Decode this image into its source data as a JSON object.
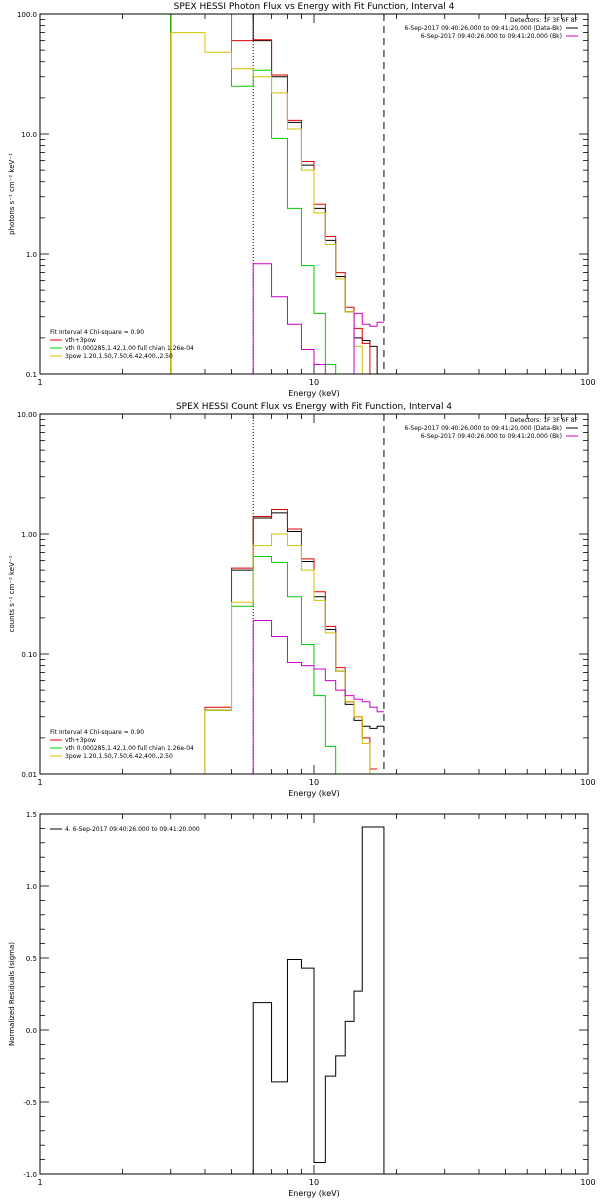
{
  "chart_data": [
    {
      "type": "line",
      "title": "SPEX HESSI Photon Flux vs Energy with Fit Function, Interval 4",
      "xlabel": "Energy (keV)",
      "ylabel": "photons s⁻¹ cm⁻² keV⁻¹",
      "xscale": "log",
      "yscale": "log",
      "xlim": [
        1,
        100
      ],
      "ylim": [
        0.1,
        100
      ],
      "x_tick_labels": [
        {
          "v": 1,
          "t": "1"
        },
        {
          "v": 10,
          "t": "10"
        },
        {
          "v": 100,
          "t": "100"
        }
      ],
      "y_tick_labels": [
        {
          "v": 0.1,
          "t": "0.1"
        },
        {
          "v": 1,
          "t": "1.0"
        },
        {
          "v": 10,
          "t": "10.0"
        },
        {
          "v": 100,
          "t": "100.0"
        }
      ],
      "legend_placement": "bottom-left",
      "legend_title": "Fit Interval 4   Chi-square = 0.90",
      "legend": [
        {
          "label": "vth+3pow",
          "color": "#e00000"
        },
        {
          "label": "vth 0.000285,1.42,1.00   full chian 1.26e-04",
          "color": "#00cc00"
        },
        {
          "label": "3pow 1.20,1.50,7.50,6.42,400.,2.50",
          "color": "#d4c000"
        }
      ],
      "info_lines": [
        "Detectors: 1F 3F 6F 8F",
        "6-Sep-2017 09:40:26.000 to 09:41:20.000 (Data-Bk)",
        "6-Sep-2017 09:40:26.000 to 09:41:20.000 (Bk)"
      ],
      "info_colors": [
        "",
        "#000000",
        "#cc00cc"
      ],
      "vlines": [
        {
          "x": 6.0,
          "style": "dotted"
        },
        {
          "x": 18.0,
          "style": "dashed"
        }
      ],
      "edges": [
        3.0,
        4.0,
        5.0,
        6.0,
        7.0,
        8.0,
        9.0,
        10.0,
        11.0,
        12.0,
        13.0,
        14.0,
        15.0,
        16.0,
        17.0,
        18.0
      ],
      "series": [
        {
          "name": "vth+3pow",
          "color": "#e00000",
          "values": [
            100,
            100,
            60,
            61,
            31,
            13,
            5.9,
            2.6,
            1.4,
            0.7,
            0.36,
            0.24,
            0.18,
            0.095
          ]
        },
        {
          "name": "Data-Bk",
          "color": "#000000",
          "values": [
            100,
            100,
            100,
            60,
            30,
            12.5,
            5.5,
            2.4,
            1.3,
            0.65,
            0.33,
            0.2,
            0.19,
            0.17,
            0.095
          ]
        },
        {
          "name": "vth",
          "color": "#00cc00",
          "values": [
            100,
            100,
            25,
            34,
            9.2,
            2.4,
            0.8,
            0.32,
            0.12,
            0.04
          ]
        },
        {
          "name": "3pow",
          "color": "#d4c000",
          "values": [
            70,
            48,
            35,
            30,
            22,
            11,
            5.0,
            2.2,
            1.2,
            0.62,
            0.33,
            0.17,
            0.1
          ]
        },
        {
          "name": "Bk",
          "color": "#cc00cc",
          "values": [
            null,
            null,
            null,
            0.83,
            0.44,
            0.26,
            0.16,
            0.12,
            0.1,
            0.1,
            0.08,
            0.32,
            0.26,
            0.25,
            0.27
          ]
        }
      ]
    },
    {
      "type": "line",
      "title": "SPEX HESSI Count Flux vs Energy with Fit Function, Interval 4",
      "xlabel": "Energy (keV)",
      "ylabel": "counts s⁻¹ cm⁻² keV⁻¹",
      "xscale": "log",
      "yscale": "log",
      "xlim": [
        1,
        100
      ],
      "ylim": [
        0.01,
        10
      ],
      "x_tick_labels": [
        {
          "v": 1,
          "t": "1"
        },
        {
          "v": 10,
          "t": "10"
        },
        {
          "v": 100,
          "t": "100"
        }
      ],
      "y_tick_labels": [
        {
          "v": 0.01,
          "t": "0.01"
        },
        {
          "v": 0.1,
          "t": "0.10"
        },
        {
          "v": 1,
          "t": "1.00"
        },
        {
          "v": 10,
          "t": "10.00"
        }
      ],
      "legend_placement": "bottom-left",
      "legend_title": "Fit Interval 4   Chi-square = 0.90",
      "legend": [
        {
          "label": "vth+3pow",
          "color": "#e00000"
        },
        {
          "label": "vth 0.000285,1.42,1.00   full chian 1.26e-04",
          "color": "#00cc00"
        },
        {
          "label": "3pow 1.20,1.50,7.50,6.42,400.,2.50",
          "color": "#d4c000"
        }
      ],
      "info_lines": [
        "Detectors: 1F 3F 6F 8F",
        "6-Sep-2017 09:40:26.000 to 09:41:20.000 (Data-Bk)",
        "6-Sep-2017 09:40:26.000 to 09:41:20.000 (Bk)"
      ],
      "info_colors": [
        "",
        "#000000",
        "#cc00cc"
      ],
      "vlines": [
        {
          "x": 6.0,
          "style": "dotted"
        },
        {
          "x": 18.0,
          "style": "dashed"
        }
      ],
      "edges": [
        4.0,
        5.0,
        6.0,
        7.0,
        8.0,
        9.0,
        10.0,
        11.0,
        12.0,
        13.0,
        14.0,
        15.0,
        16.0,
        17.0,
        18.0
      ],
      "series": [
        {
          "name": "vth+3pow",
          "color": "#e00000",
          "values": [
            0.036,
            0.52,
            1.4,
            1.6,
            1.1,
            0.62,
            0.33,
            0.17,
            0.077,
            0.04,
            0.03,
            0.02,
            0.011
          ]
        },
        {
          "name": "Data-Bk",
          "color": "#000000",
          "values": [
            0.034,
            0.5,
            1.36,
            1.5,
            1.05,
            0.59,
            0.3,
            0.16,
            0.072,
            0.038,
            0.028,
            0.025,
            0.024,
            0.025
          ]
        },
        {
          "name": "vth",
          "color": "#00cc00",
          "values": [
            0.034,
            0.25,
            0.65,
            0.58,
            0.3,
            0.12,
            0.045,
            0.017,
            0.008
          ]
        },
        {
          "name": "3pow",
          "color": "#d4c000",
          "values": [
            0.034,
            0.27,
            0.8,
            1.0,
            0.8,
            0.5,
            0.28,
            0.15,
            0.072,
            0.04,
            0.03,
            0.018,
            0.01
          ]
        },
        {
          "name": "Bk",
          "color": "#cc00cc",
          "values": [
            null,
            null,
            0.19,
            0.14,
            0.085,
            0.08,
            0.075,
            0.06,
            0.05,
            0.045,
            0.042,
            0.04,
            0.036,
            0.033
          ]
        }
      ]
    },
    {
      "type": "line",
      "title": "",
      "xlabel": "Energy (keV)",
      "ylabel": "Normalized Residuals (sigma)",
      "xscale": "log",
      "yscale": "linear",
      "xlim": [
        1,
        100
      ],
      "ylim": [
        -1.0,
        1.5
      ],
      "x_tick_labels": [
        {
          "v": 1,
          "t": "1"
        },
        {
          "v": 10,
          "t": "10"
        },
        {
          "v": 100,
          "t": "100"
        }
      ],
      "y_tick_labels": [
        {
          "v": -1.0,
          "t": "-1.0"
        },
        {
          "v": -0.5,
          "t": "-0.5"
        },
        {
          "v": 0.0,
          "t": "0.0"
        },
        {
          "v": 0.5,
          "t": "0.5"
        },
        {
          "v": 1.0,
          "t": "1.0"
        },
        {
          "v": 1.5,
          "t": "1.5"
        }
      ],
      "legend_placement": "top-left",
      "legend_title": "",
      "legend": [
        {
          "label": "4.  6-Sep-2017 09:40:26.000 to 09:41:20.000",
          "color": "#000000"
        }
      ],
      "info_lines": [],
      "info_colors": [],
      "vlines": [],
      "edges": [
        6.0,
        7.0,
        8.0,
        9.0,
        10.0,
        11.0,
        12.0,
        13.0,
        14.0,
        15.0,
        16.0,
        17.0,
        18.0
      ],
      "series": [
        {
          "name": "4.  6-Sep-2017 09:40:26.000 to 09:41:20.000",
          "color": "#000000",
          "values": [
            0.19,
            -0.36,
            0.49,
            0.43,
            -0.92,
            -0.32,
            -0.18,
            0.06,
            0.27,
            1.41,
            1.41,
            1.41
          ]
        }
      ]
    }
  ]
}
